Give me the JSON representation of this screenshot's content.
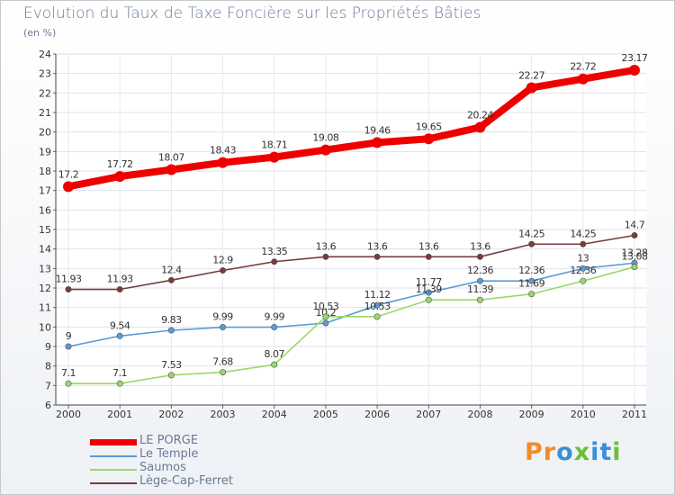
{
  "title": "Evolution du Taux de Taxe Foncière sur les Propriétés Bâties",
  "unit_label": "(en %)",
  "brand": {
    "text": "Proxiti",
    "letters": [
      {
        "ch": "P",
        "color": "#f28c28"
      },
      {
        "ch": "r",
        "color": "#f28c28"
      },
      {
        "ch": "o",
        "color": "#3a8fd6"
      },
      {
        "ch": "x",
        "color": "#6bbf3a"
      },
      {
        "ch": "i",
        "color": "#3a8fd6"
      },
      {
        "ch": "t",
        "color": "#3a8fd6"
      },
      {
        "ch": "i",
        "color": "#6bbf3a"
      }
    ]
  },
  "chart_data": {
    "type": "line",
    "title": "Evolution du Taux de Taxe Foncière sur les Propriétés Bâties",
    "ylabel": "(en %)",
    "xlabel": "",
    "x": [
      "2000",
      "2001",
      "2002",
      "2003",
      "2004",
      "2005",
      "2006",
      "2007",
      "2008",
      "2009",
      "2010",
      "2011"
    ],
    "ylim": [
      6,
      24
    ],
    "yticks": [
      6,
      7,
      8,
      9,
      10,
      11,
      12,
      13,
      14,
      15,
      16,
      17,
      18,
      19,
      20,
      21,
      22,
      23,
      24
    ],
    "grid": true,
    "legend": "bottom-left",
    "series": [
      {
        "name": "LE PORGE",
        "color": "#ee0000",
        "values": [
          17.2,
          17.72,
          18.07,
          18.43,
          18.71,
          19.08,
          19.46,
          19.65,
          20.24,
          22.27,
          22.72,
          23.17
        ],
        "labels": [
          "17.2",
          "17.72",
          "18.07",
          "18.43",
          "18.71",
          "19.08",
          "19.46",
          "19.65",
          "20.24",
          "22.27",
          "22.72",
          "23.17"
        ]
      },
      {
        "name": "Le Temple",
        "color": "#5b9bd5",
        "values": [
          9,
          9.54,
          9.83,
          9.99,
          9.99,
          10.2,
          11.12,
          11.77,
          12.36,
          12.36,
          13,
          13.28
        ],
        "labels": [
          "9",
          "9.54",
          "9.83",
          "9.99",
          "9.99",
          "10.2",
          "11.12",
          "11.77",
          "12.36",
          "12.36",
          "13",
          "13.28"
        ]
      },
      {
        "name": "Saumos",
        "color": "#9ad86a",
        "values": [
          7.1,
          7.1,
          7.53,
          7.68,
          8.07,
          10.53,
          10.53,
          11.39,
          11.39,
          11.69,
          12.36,
          13.08
        ],
        "labels": [
          "7.1",
          "7.1",
          "7.53",
          "7.68",
          "8.07",
          "10.53",
          "10.53",
          "11.39",
          "11.39",
          "11.69",
          "12.36",
          "13.08"
        ]
      },
      {
        "name": "Lège-Cap-Ferret",
        "color": "#7a3b3b",
        "values": [
          11.93,
          11.93,
          12.4,
          12.9,
          13.35,
          13.6,
          13.6,
          13.6,
          13.6,
          14.25,
          14.25,
          14.7
        ],
        "labels": [
          "11.93",
          "11.93",
          "12.4",
          "12.9",
          "13.35",
          "13.6",
          "13.6",
          "13.6",
          "13.6",
          "14.25",
          "14.25",
          "14.7"
        ]
      }
    ]
  }
}
